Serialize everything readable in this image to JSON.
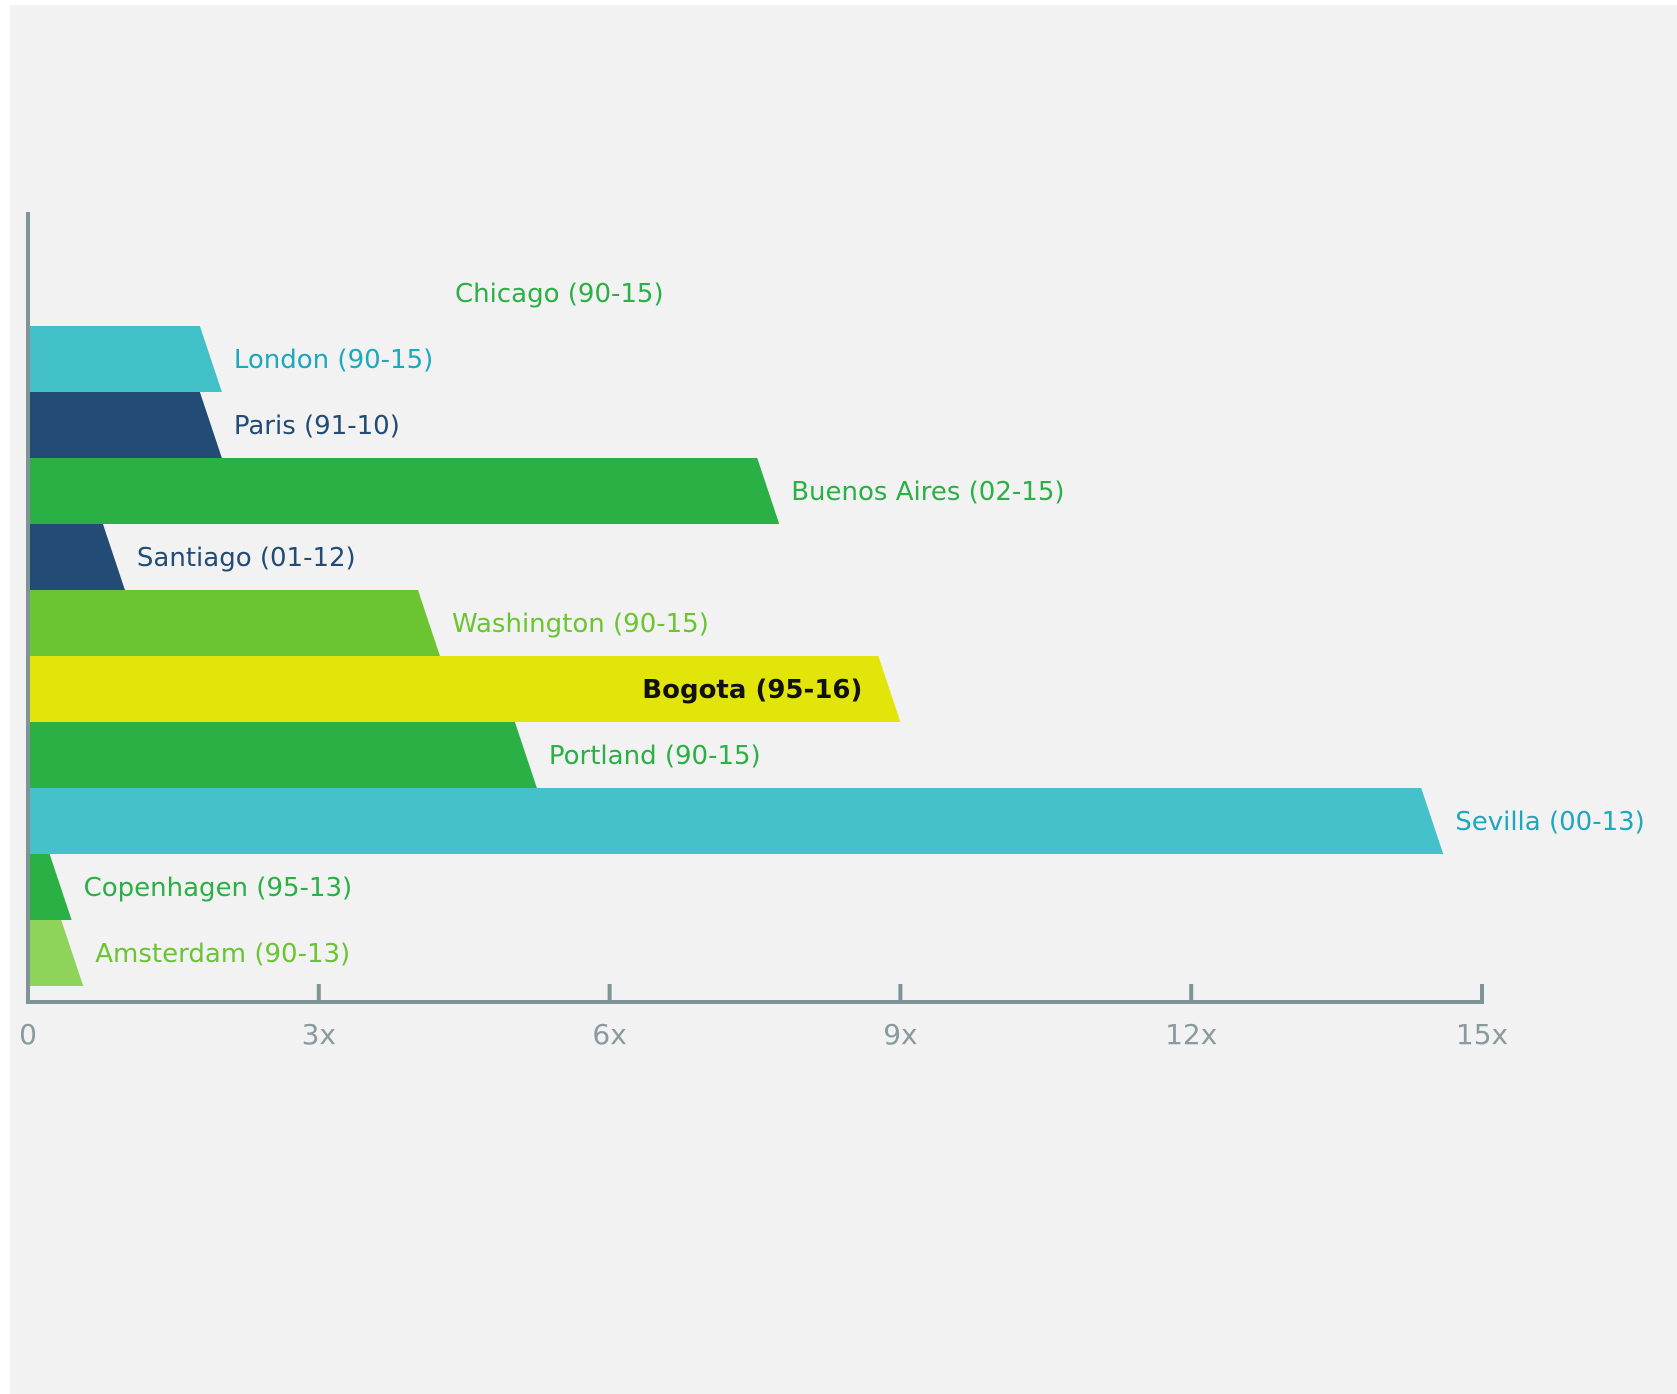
{
  "chart_data": {
    "type": "bar",
    "orientation": "horizontal",
    "title": "",
    "xlabel": "",
    "ylabel": "",
    "xlim": [
      0,
      15
    ],
    "x_ticks": [
      {
        "value": 0,
        "label": "0"
      },
      {
        "value": 3,
        "label": "3x"
      },
      {
        "value": 6,
        "label": "6x"
      },
      {
        "value": 9,
        "label": "9x"
      },
      {
        "value": 12,
        "label": "12x"
      },
      {
        "value": 15,
        "label": "15x"
      }
    ],
    "grid": false,
    "legend": "none",
    "categories": [
      "Chicago (90-15)",
      "London (90-15)",
      "Paris (91-10)",
      "Buenos Aires (02-15)",
      "Santiago (01-12)",
      "Washington (90-15)",
      "Bogota (95-16)",
      "Portland (90-15)",
      "Sevilla (00-13)",
      "Copenhagen (95-13)",
      "Amsterdam (90-13)"
    ],
    "values": [
      0,
      2.0,
      2.0,
      7.75,
      1.0,
      4.25,
      9.0,
      5.25,
      14.6,
      0.45,
      0.57
    ],
    "bar_colors": [
      "#2bb045",
      "#42c0c8",
      "#224b75",
      "#2bb045",
      "#224b75",
      "#6bc533",
      "#e2e50a",
      "#2bb045",
      "#45c1c9",
      "#2bb045",
      "#8ed35a"
    ],
    "label_colors": [
      "#2bb045",
      "#1fa8bd",
      "#224b75",
      "#2bb045",
      "#224b75",
      "#6bc533",
      "#111111",
      "#2bb045",
      "#1fa8bd",
      "#2bb045",
      "#6bc533"
    ],
    "label_bold": [
      false,
      false,
      false,
      false,
      false,
      false,
      true,
      false,
      false,
      false,
      false
    ],
    "highlight": "Bogota (95-16)",
    "axis_color": "#7f9497"
  }
}
